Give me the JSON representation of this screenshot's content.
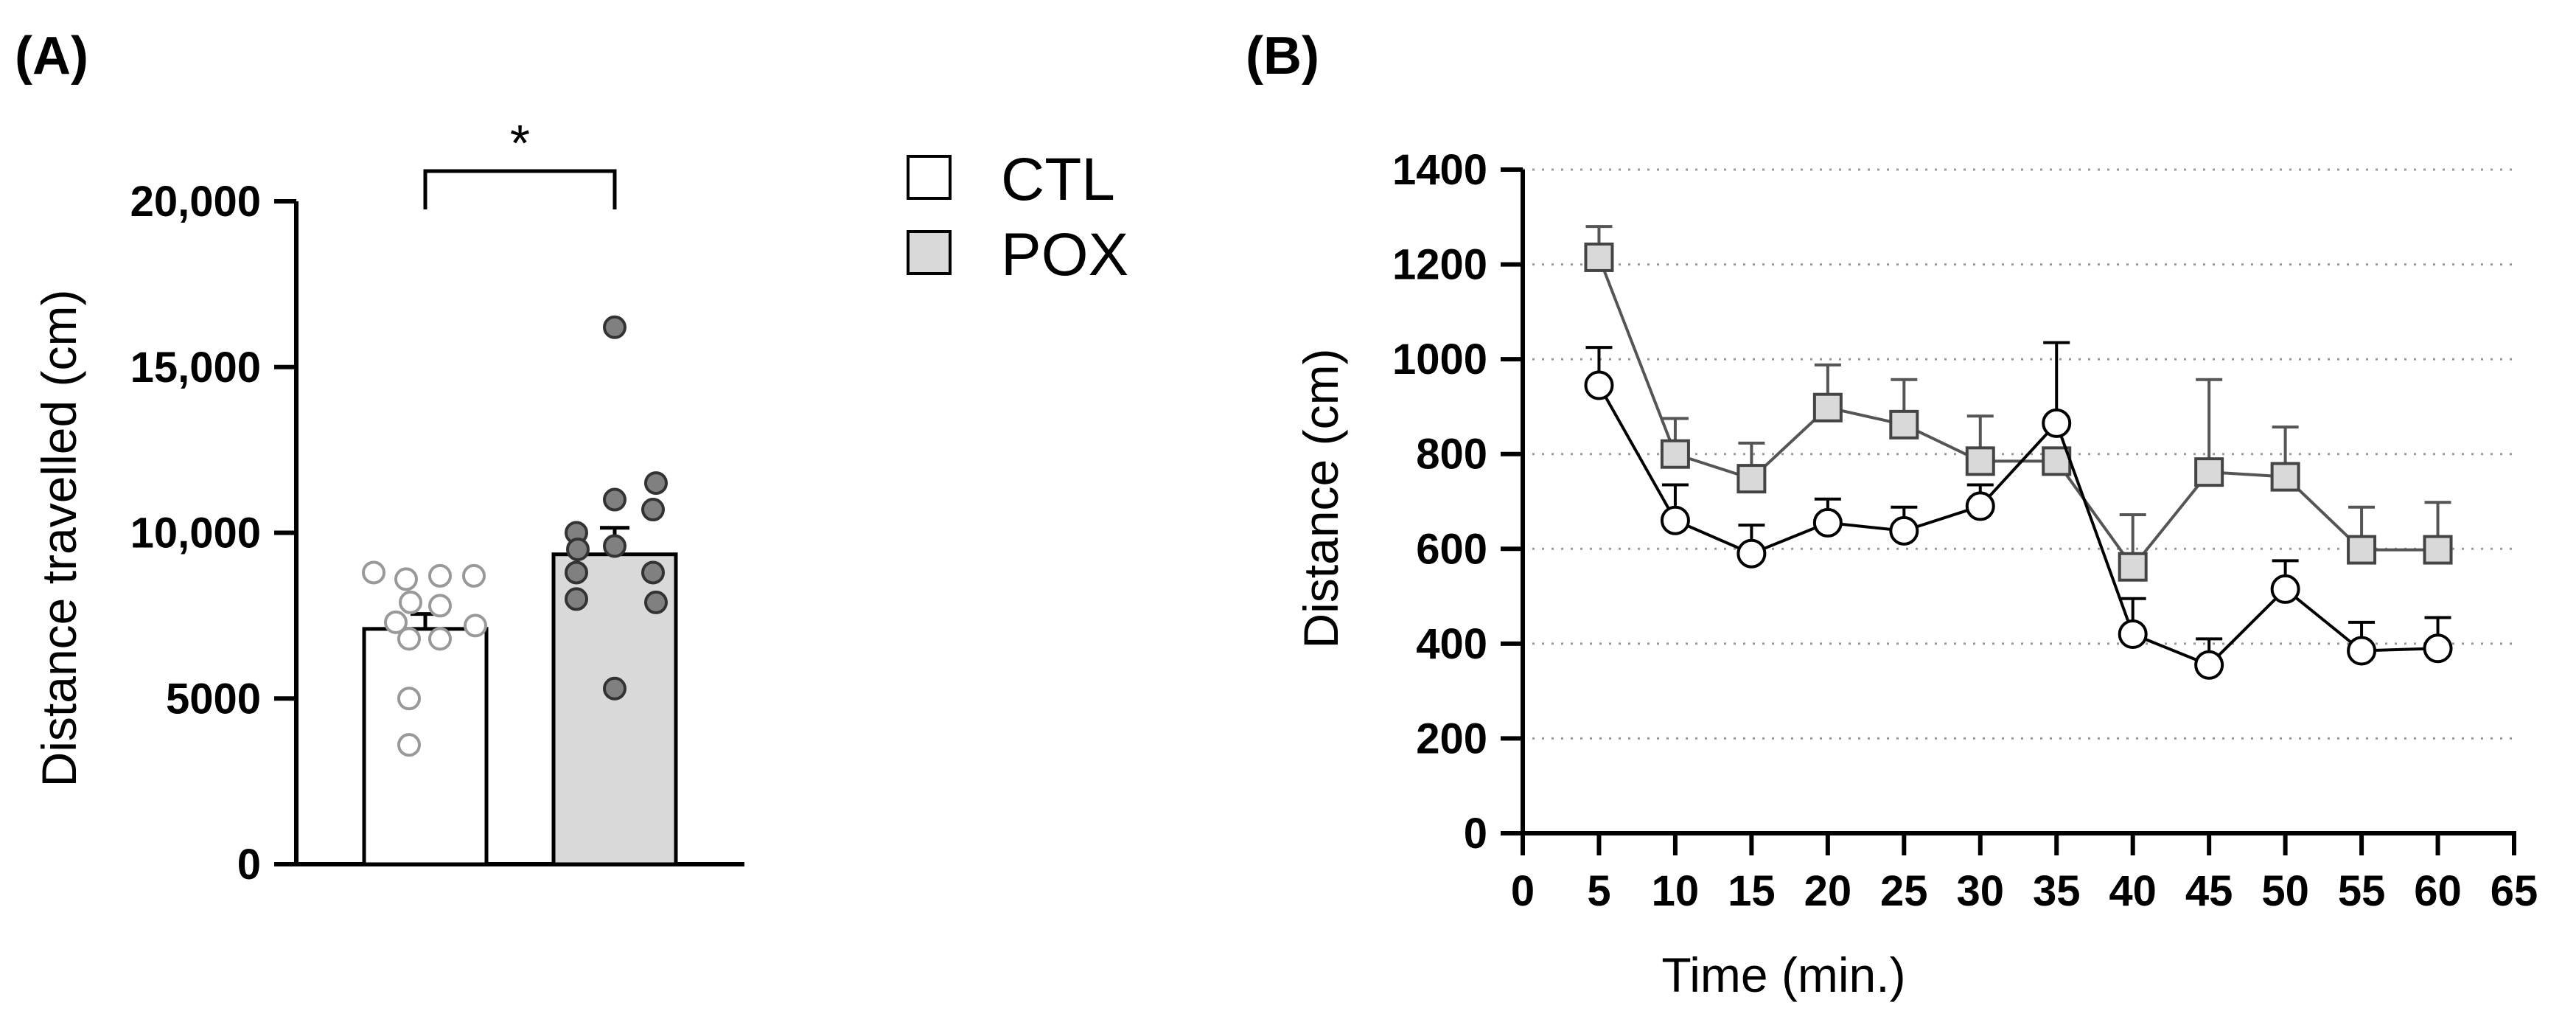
{
  "chart_data": [
    {
      "type": "bar",
      "panel_label": "(A)",
      "ylabel": "Distance travelled (cm)",
      "ylim": [
        0,
        20000
      ],
      "y_ticks": [
        0,
        5000,
        10000,
        15000,
        20000
      ],
      "y_tick_labels": [
        "0",
        "5000",
        "10,000",
        "15,000",
        "20,000"
      ],
      "categories": [
        "CTL",
        "POX"
      ],
      "values": [
        7100,
        9350
      ],
      "errors": [
        450,
        800
      ],
      "bar_colors": [
        "#ffffff",
        "#d9d9d9"
      ],
      "points": [
        [
          8800,
          8600,
          8700,
          8700,
          7900,
          7800,
          7300,
          7200,
          6800,
          6800,
          5000,
          3600
        ],
        [
          16200,
          11500,
          11000,
          10700,
          10000,
          9600,
          9500,
          8800,
          8800,
          8000,
          7900,
          5300
        ]
      ],
      "point_colors": [
        "#ffffff",
        "#808080"
      ],
      "significance": "*",
      "legend": [
        {
          "label": "CTL",
          "color": "#ffffff"
        },
        {
          "label": "POX",
          "color": "#d9d9d9"
        }
      ],
      "legend_position": "right"
    },
    {
      "type": "line",
      "panel_label": "(B)",
      "xlabel": "Time (min.)",
      "ylabel": "Distance (cm)",
      "xlim": [
        0,
        65
      ],
      "ylim": [
        0,
        1400
      ],
      "x_ticks": [
        0,
        5,
        10,
        15,
        20,
        25,
        30,
        35,
        40,
        45,
        50,
        55,
        60,
        65
      ],
      "y_ticks": [
        0,
        200,
        400,
        600,
        800,
        1000,
        1200,
        1400
      ],
      "grid": "horizontal dotted",
      "x": [
        5,
        10,
        15,
        20,
        25,
        30,
        35,
        40,
        45,
        50,
        55,
        60
      ],
      "series": [
        {
          "name": "CTL",
          "marker": "circle",
          "line_color": "#000000",
          "fill": "#ffffff",
          "values": [
            945,
            660,
            590,
            655,
            638,
            690,
            865,
            420,
            355,
            515,
            385,
            390
          ],
          "errors": [
            80,
            75,
            60,
            50,
            50,
            45,
            170,
            75,
            55,
            60,
            60,
            65
          ]
        },
        {
          "name": "POX",
          "marker": "square",
          "line_color": "#555555",
          "fill": "#d9d9d9",
          "values": [
            1215,
            800,
            748,
            898,
            862,
            785,
            785,
            562,
            762,
            752,
            598,
            598
          ],
          "errors": [
            65,
            75,
            75,
            90,
            95,
            95,
            0,
            110,
            195,
            105,
            90,
            100
          ]
        }
      ]
    }
  ]
}
